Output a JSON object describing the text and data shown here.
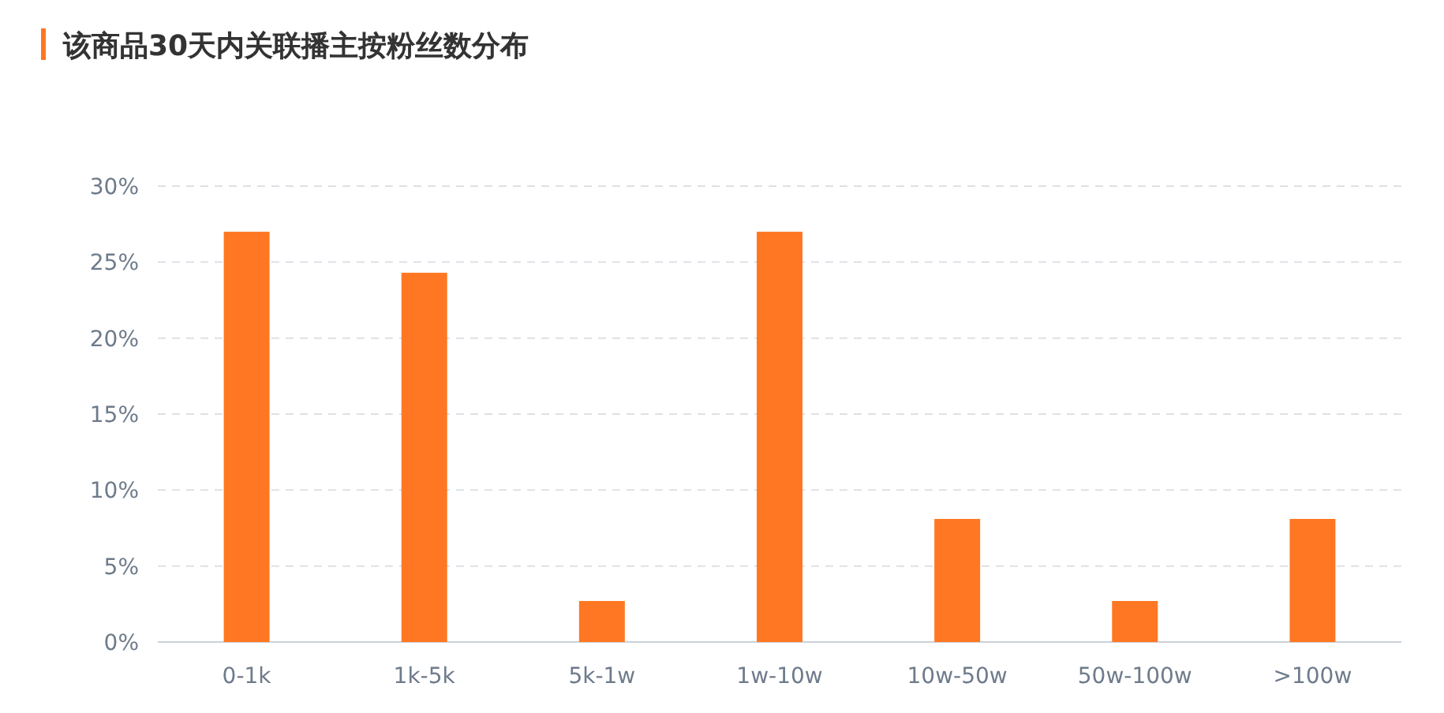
{
  "chart_data": {
    "type": "bar",
    "title": "该商品30天内关联播主按粉丝数分布",
    "categories": [
      "0-1k",
      "1k-5k",
      "5k-1w",
      "1w-10w",
      "10w-50w",
      "50w-100w",
      ">100w"
    ],
    "values": [
      27.0,
      24.3,
      2.7,
      27.0,
      8.1,
      2.7,
      8.1
    ],
    "color": "#ff7722",
    "ylim": [
      0,
      30
    ],
    "yticks": [
      {
        "value": 0,
        "label": "0%"
      },
      {
        "value": 5,
        "label": "5%"
      },
      {
        "value": 10,
        "label": "10%"
      },
      {
        "value": 15,
        "label": "15%"
      },
      {
        "value": 20,
        "label": "20%"
      },
      {
        "value": 25,
        "label": "25%"
      },
      {
        "value": 30,
        "label": "30%"
      }
    ],
    "grid": "y"
  }
}
